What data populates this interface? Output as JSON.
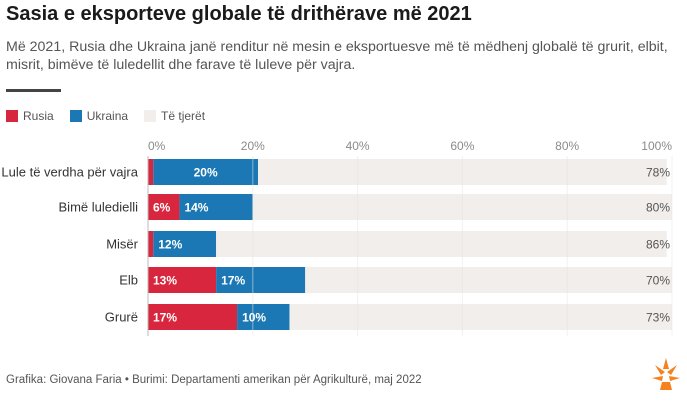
{
  "title": "Sasia e eksporteve globale të drithërave më 2021",
  "subtitle": "Më 2021, Rusia dhe Ukraina janë renditur në mesin e eksportuesve më të mëdhenj globalë të grurit, elbit, misrit, bimëve të luledellit dhe farave të luleve për vajra.",
  "footer": "Grafika: Giovana Faria • Burimi: Departamenti amerikan për Agrikulturë, maj 2022",
  "colors": {
    "russia": "#d7263d",
    "ukraine": "#1b78b4",
    "others": "#f1eeeb",
    "grid": "#e6e6e6",
    "logo": "#f5821f"
  },
  "chart_data": {
    "type": "bar",
    "orientation": "horizontal",
    "stacked": true,
    "categories": [
      "Lule të verdha për vajra",
      "Bimë luledielli",
      "Misër",
      "Elb",
      "Grurë"
    ],
    "series": [
      {
        "name": "Rusia",
        "values": [
          1,
          6,
          1,
          13,
          17
        ],
        "labels": [
          "",
          "6%",
          "",
          "13%",
          "17%"
        ]
      },
      {
        "name": "Ukraina",
        "values": [
          20,
          14,
          12,
          17,
          10
        ],
        "labels": [
          "20%",
          "14%",
          "12%",
          "17%",
          "10%"
        ]
      },
      {
        "name": "Të tjerët",
        "values": [
          78,
          80,
          86,
          70,
          73
        ],
        "labels": [
          "78%",
          "80%",
          "86%",
          "70%",
          "73%"
        ]
      }
    ],
    "xlim": [
      0,
      100
    ],
    "xticks": [
      "0%",
      "20%",
      "40%",
      "60%",
      "80%",
      "100%"
    ],
    "legend_position": "top-left",
    "grid": true
  }
}
